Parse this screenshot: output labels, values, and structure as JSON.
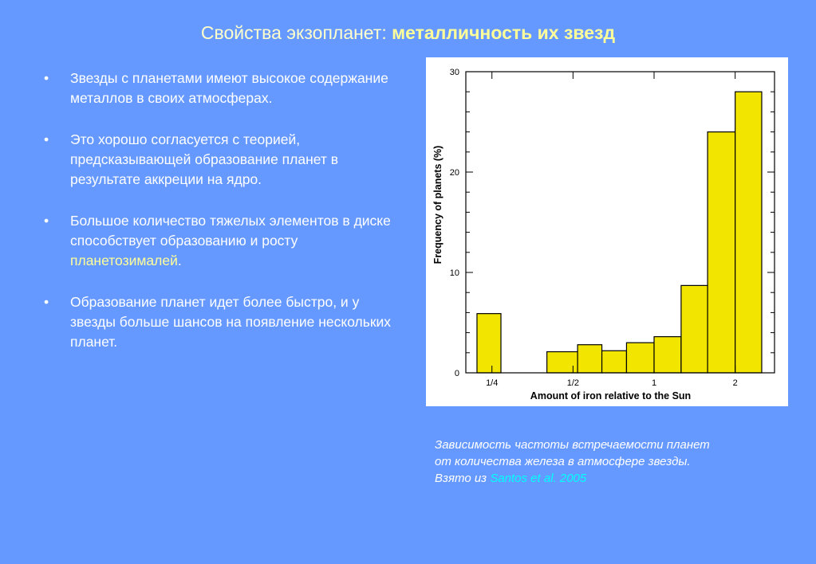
{
  "slide": {
    "title_plain": "Свойства экзопланет: ",
    "title_bold": "металличность их звезд"
  },
  "bullets": [
    {
      "text": "Звезды с планетами имеют высокое содержание металлов в своих атмосферах."
    },
    {
      "text": "Это хорошо согласуется с теорией, предсказывающей образование планет в результате аккреции на ядро."
    },
    {
      "text_before": "Большое количество тяжелых элементов в диске способствует образованию и росту ",
      "highlight": "планетозималей",
      "text_after": "."
    },
    {
      "text": "Образование планет идет более быстро, и у звезды больше шансов на появление нескольких планет."
    }
  ],
  "bullet_char": "•",
  "caption": {
    "line1": "Зависимость частоты встречаемости планет",
    "line2": "от количества железа в атмосфере звезды.",
    "line3_prefix": "Взято из ",
    "link": "Santos et al. 2005"
  },
  "colors": {
    "background": "#6699ff",
    "bar_fill": "#f2e600",
    "highlight_text": "#ffff99",
    "link": "#00ffff"
  },
  "chart_data": {
    "type": "bar",
    "xlabel": "Amount of iron relative to the Sun",
    "ylabel": "Frequency of planets (%)",
    "ylim": [
      0,
      30
    ],
    "yticks": [
      0,
      10,
      20,
      30
    ],
    "x_scale": "log",
    "xlim": [
      0.2,
      2.8
    ],
    "xticks": [
      {
        "value": 0.25,
        "label": "1/4"
      },
      {
        "value": 0.5,
        "label": "1/2"
      },
      {
        "value": 1,
        "label": "1"
      },
      {
        "value": 2,
        "label": "2"
      }
    ],
    "bins": [
      {
        "x0": 0.22,
        "x1": 0.27,
        "value": 5.9
      },
      {
        "x0": 0.4,
        "x1": 0.52,
        "value": 2.1
      },
      {
        "x0": 0.52,
        "x1": 0.64,
        "value": 2.8
      },
      {
        "x0": 0.64,
        "x1": 0.79,
        "value": 2.2
      },
      {
        "x0": 0.79,
        "x1": 1.0,
        "value": 3.0
      },
      {
        "x0": 1.0,
        "x1": 1.26,
        "value": 3.6
      },
      {
        "x0": 1.26,
        "x1": 1.58,
        "value": 8.7
      },
      {
        "x0": 1.58,
        "x1": 2.0,
        "value": 24.0
      },
      {
        "x0": 2.0,
        "x1": 2.51,
        "value": 28.0
      }
    ],
    "grid": false,
    "legend": "none"
  }
}
